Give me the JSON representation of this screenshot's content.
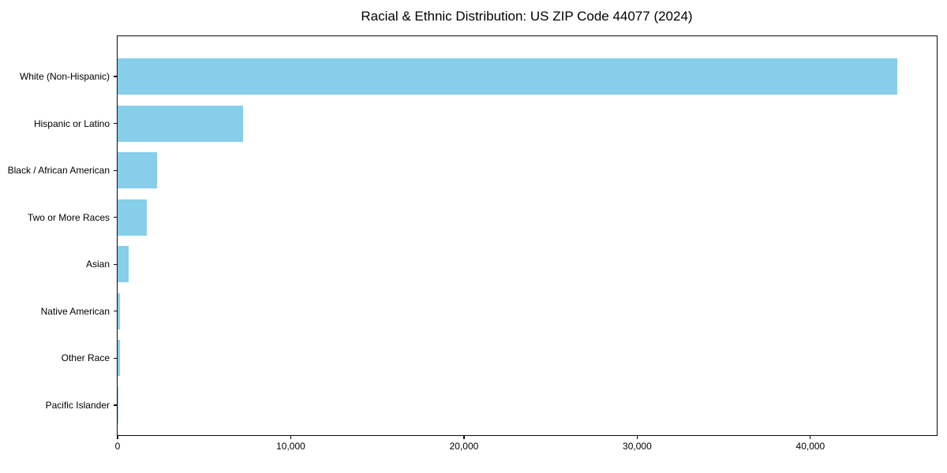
{
  "chart_data": {
    "type": "bar",
    "orientation": "horizontal",
    "title": "Racial & Ethnic Distribution: US ZIP Code 44077 (2024)",
    "categories": [
      "White (Non-Hispanic)",
      "Hispanic or Latino",
      "Black / African American",
      "Two or More Races",
      "Asian",
      "Native American",
      "Other Race",
      "Pacific Islander"
    ],
    "values": [
      45000,
      7250,
      2280,
      1690,
      640,
      135,
      130,
      20
    ],
    "xlabel": "",
    "ylabel": "",
    "xlim": [
      0,
      47250
    ],
    "xticks": [
      {
        "value": 0,
        "label": "0"
      },
      {
        "value": 10000,
        "label": "10,000"
      },
      {
        "value": 20000,
        "label": "20,000"
      },
      {
        "value": 30000,
        "label": "30,000"
      },
      {
        "value": 40000,
        "label": "40,000"
      }
    ],
    "bar_color": "#87CEEB",
    "spine_color": "#0a0a0a",
    "background_color": "#ffffff",
    "grid": false,
    "legend": null,
    "sort": "descending"
  }
}
